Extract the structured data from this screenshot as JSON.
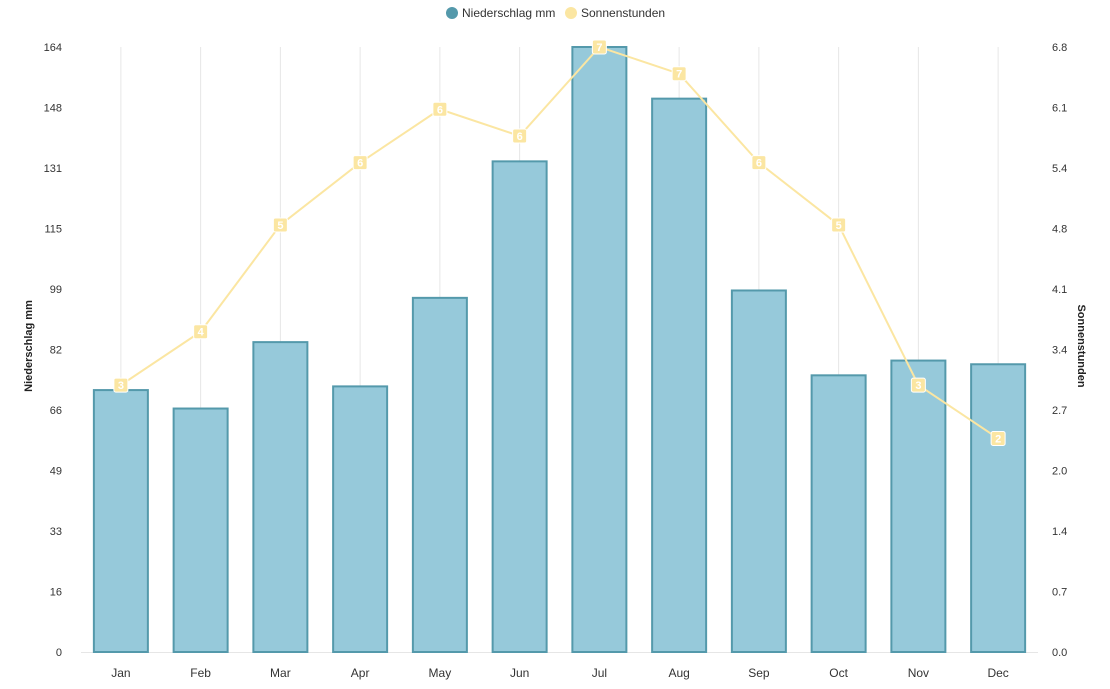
{
  "chart_data": {
    "type": "bar",
    "categories": [
      "Jan",
      "Feb",
      "Mar",
      "Apr",
      "May",
      "Jun",
      "Jul",
      "Aug",
      "Sep",
      "Oct",
      "Nov",
      "Dec"
    ],
    "series": [
      {
        "name": "Niederschlag mm",
        "type": "bar",
        "axis": "left",
        "color": "#96c9da",
        "border_color": "#5499ab",
        "values": [
          71,
          66,
          84,
          72,
          96,
          133,
          164,
          150,
          98,
          75,
          79,
          78
        ]
      },
      {
        "name": "Sonnenstunden",
        "type": "line",
        "axis": "right",
        "color": "#fbe6a2",
        "values": [
          3.0,
          3.6,
          4.8,
          5.5,
          6.1,
          5.8,
          6.8,
          6.5,
          5.5,
          4.8,
          3.0,
          2.4
        ],
        "point_labels": [
          "3",
          "4",
          "5",
          "6",
          "6",
          "6",
          "7",
          "7",
          "6",
          "5",
          "3",
          "2"
        ]
      }
    ],
    "y_left": {
      "label": "Niederschlag mm",
      "ticks": [
        "0",
        "16",
        "33",
        "49",
        "66",
        "82",
        "99",
        "115",
        "131",
        "148",
        "164"
      ],
      "range": [
        0,
        164
      ]
    },
    "y_right": {
      "label": "Sonnenstunden",
      "ticks": [
        "0.0",
        "0.7",
        "1.4",
        "2.0",
        "2.7",
        "3.4",
        "4.1",
        "4.8",
        "5.4",
        "6.1",
        "6.8"
      ],
      "range": [
        0,
        6.8
      ]
    },
    "grid": "vertical",
    "legend": "top-center"
  }
}
